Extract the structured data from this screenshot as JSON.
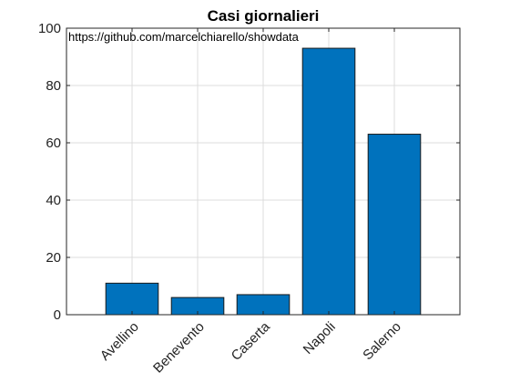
{
  "chart_data": {
    "type": "bar",
    "title": "Casi giornalieri",
    "annotation": "https://github.com/marcelchiarello/showdata",
    "categories": [
      "Avellino",
      "Benevento",
      "Caserta",
      "Napoli",
      "Salerno"
    ],
    "values": [
      11,
      6,
      7,
      93,
      63
    ],
    "ylim": [
      0,
      100
    ],
    "yticks": [
      0,
      20,
      40,
      60,
      80,
      100
    ],
    "grid": true,
    "bar_color": "#0072BD",
    "xlabel": "",
    "ylabel": ""
  }
}
